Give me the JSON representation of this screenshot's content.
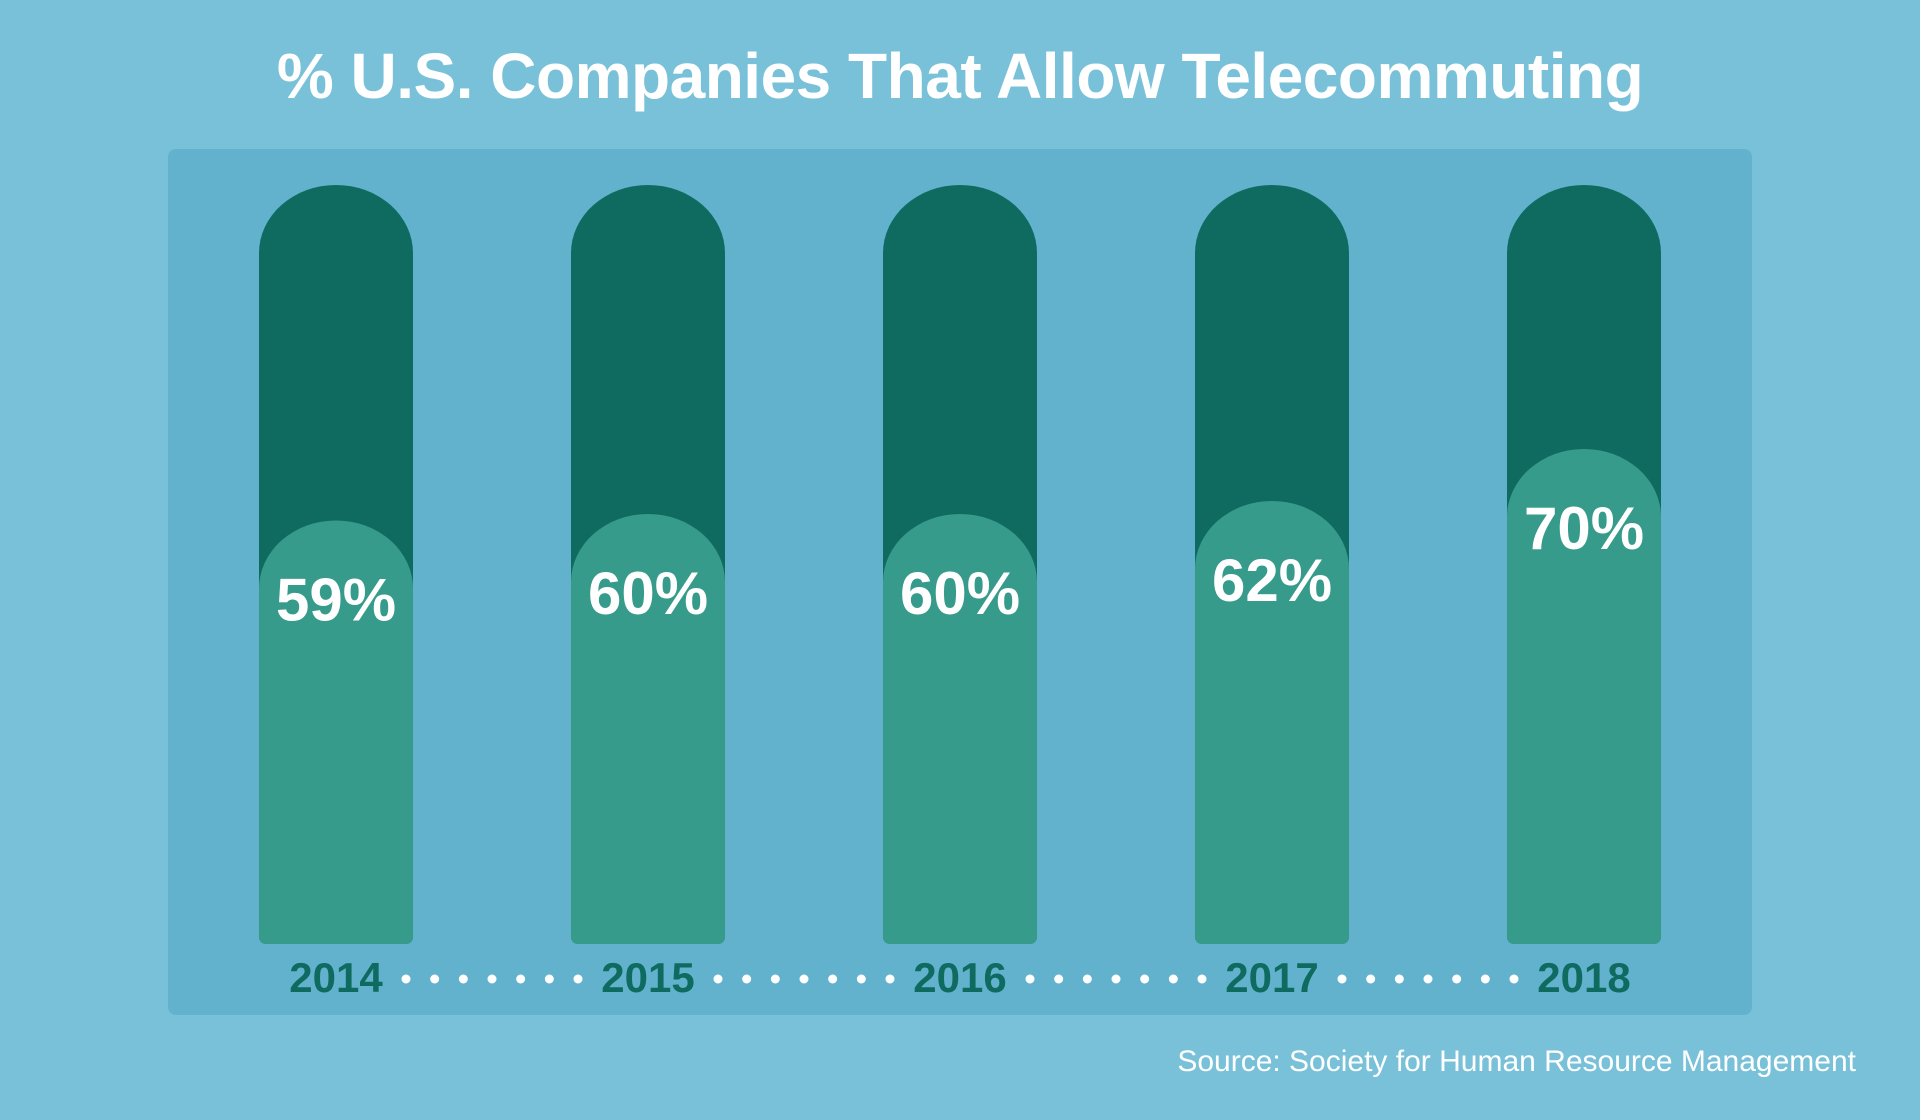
{
  "chart_data": {
    "type": "bar",
    "title": "% U.S. Companies That Allow Telecommuting",
    "categories": [
      "2014",
      "2015",
      "2016",
      "2017",
      "2018"
    ],
    "values": [
      59,
      60,
      60,
      62,
      70
    ],
    "value_labels": [
      "59%",
      "60%",
      "60%",
      "62%",
      "70%"
    ],
    "ylim": [
      0,
      100
    ],
    "grid": false,
    "legend": "none",
    "colors": {
      "background": "#78c1d9",
      "panel": "#62b2cd",
      "bar_track": "#0f6b60",
      "bar_fill": "#369b8b",
      "value_label": "#ffffff",
      "category_label": "#0f6b60",
      "dots": "#ffffff"
    }
  },
  "source": "Source: Society for Human Resource Management"
}
